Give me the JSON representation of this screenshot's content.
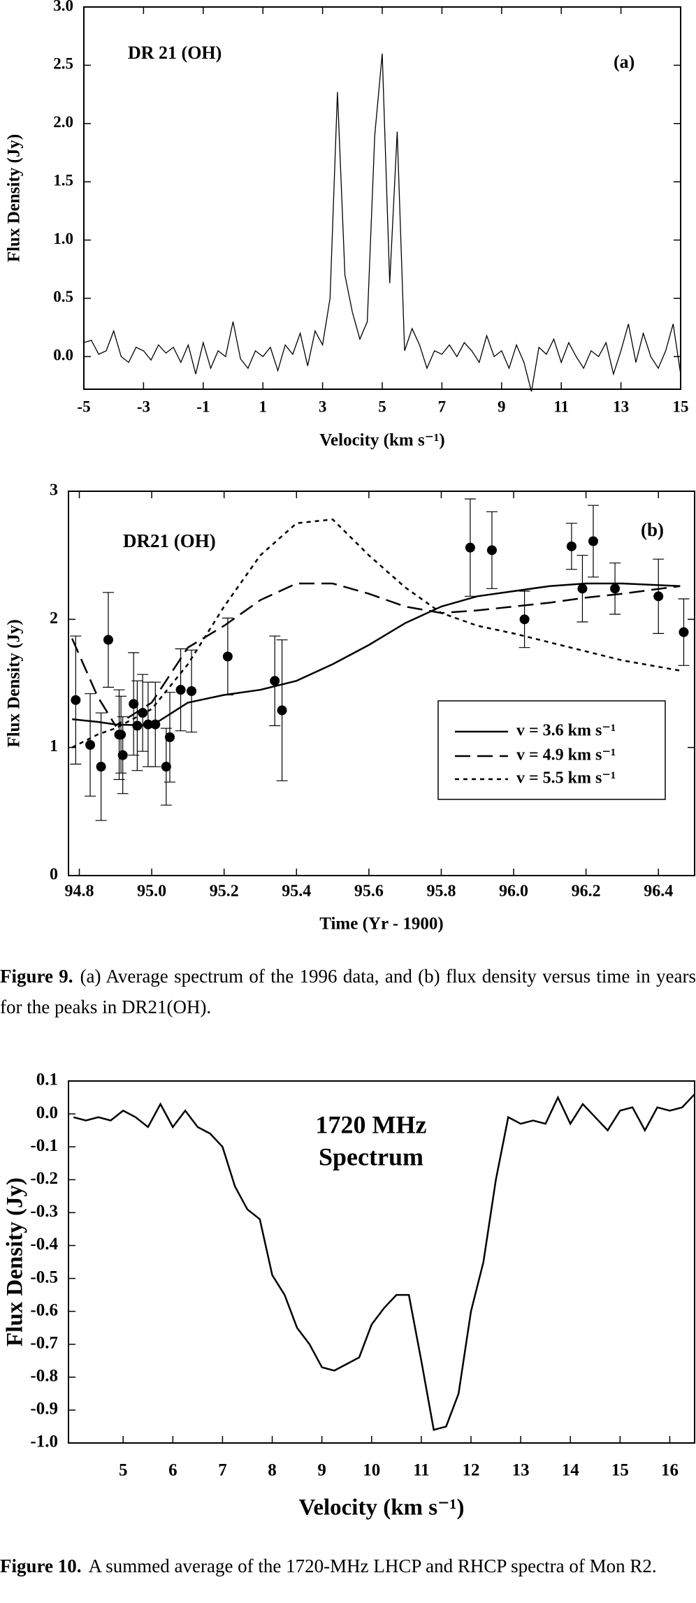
{
  "chart_data": [
    {
      "type": "line",
      "annotations": [
        "DR 21 (OH)",
        "(a)"
      ],
      "xlabel": "Velocity (km s⁻¹)",
      "ylabel": "Flux Density (Jy)",
      "color": "#000000",
      "x": [
        -5,
        -4.75,
        -4.5,
        -4.25,
        -4,
        -3.75,
        -3.5,
        -3.25,
        -3,
        -2.75,
        -2.5,
        -2.25,
        -2,
        -1.75,
        -1.5,
        -1.25,
        -1,
        -0.75,
        -0.5,
        -0.25,
        0,
        0.25,
        0.5,
        0.75,
        1,
        1.25,
        1.5,
        1.75,
        2,
        2.25,
        2.5,
        2.75,
        3,
        3.25,
        3.5,
        3.75,
        4,
        4.25,
        4.5,
        4.75,
        5,
        5.25,
        5.5,
        5.75,
        6,
        6.25,
        6.5,
        6.75,
        7,
        7.25,
        7.5,
        7.75,
        8,
        8.25,
        8.5,
        8.75,
        9,
        9.25,
        9.5,
        9.75,
        10,
        10.25,
        10.5,
        10.75,
        11,
        11.25,
        11.5,
        11.75,
        12,
        12.25,
        12.5,
        12.75,
        13,
        13.25,
        13.5,
        13.75,
        14,
        14.25,
        14.5,
        14.75,
        15
      ],
      "values": [
        0.12,
        0.14,
        0.02,
        0.05,
        0.22,
        0.0,
        -0.05,
        0.08,
        0.05,
        -0.03,
        0.1,
        0.03,
        0.08,
        -0.05,
        0.1,
        -0.15,
        0.12,
        -0.1,
        0.05,
        0.0,
        0.3,
        -0.02,
        -0.1,
        0.05,
        0.0,
        0.08,
        -0.12,
        0.1,
        0.02,
        0.2,
        -0.08,
        0.22,
        0.1,
        0.5,
        2.27,
        0.7,
        0.38,
        0.15,
        0.3,
        1.9,
        2.6,
        0.63,
        1.93,
        0.05,
        0.24,
        0.1,
        -0.1,
        0.05,
        0.02,
        0.1,
        0.0,
        0.12,
        0.05,
        -0.05,
        0.18,
        0.0,
        0.05,
        -0.1,
        0.1,
        -0.05,
        -0.3,
        0.08,
        0.02,
        0.15,
        -0.05,
        0.12,
        0.0,
        -0.1,
        0.05,
        0.0,
        0.12,
        -0.15,
        0.05,
        0.28,
        -0.05,
        0.2,
        0.0,
        -0.1,
        0.05,
        0.28,
        -0.15
      ],
      "xlim": [
        -5,
        15
      ],
      "xticks": [
        -5,
        -3,
        -1,
        1,
        3,
        5,
        7,
        9,
        11,
        13,
        15
      ],
      "ylim": [
        -0.28,
        3.0
      ],
      "yticks": [
        {
          "value": 0,
          "label": "0.0"
        },
        0.5,
        {
          "value": 1,
          "label": "1.0"
        },
        1.5,
        {
          "value": 2,
          "label": "2.0"
        },
        2.5,
        {
          "value": 3,
          "label": "3.0"
        }
      ]
    },
    {
      "type": "line",
      "annotations": [
        "DR21 (OH)",
        "(b)"
      ],
      "xlabel": "Time (Yr - 1900)",
      "ylabel": "Flux Density (Jy)",
      "legend": true,
      "x": [
        94.78,
        94.85,
        94.9,
        95.0,
        95.1,
        95.2,
        95.3,
        95.4,
        95.5,
        95.6,
        95.7,
        95.8,
        95.9,
        96.0,
        96.1,
        96.2,
        96.3,
        96.46
      ],
      "series": [
        {
          "name": "v = 3.6 km s⁻¹",
          "color": "#000000",
          "dash": "solid",
          "values": [
            1.22,
            1.2,
            1.18,
            1.17,
            1.35,
            1.41,
            1.45,
            1.52,
            1.65,
            1.8,
            1.97,
            2.1,
            2.18,
            2.22,
            2.26,
            2.28,
            2.28,
            2.26
          ]
        },
        {
          "name": "v = 4.9 km s⁻¹",
          "color": "#000000",
          "dash": "dashed",
          "values": [
            1.85,
            1.4,
            1.17,
            1.35,
            1.78,
            1.95,
            2.15,
            2.28,
            2.28,
            2.2,
            2.1,
            2.05,
            2.07,
            2.1,
            2.13,
            2.17,
            2.2,
            2.26
          ]
        },
        {
          "name": "v = 5.5 km s⁻¹",
          "color": "#000000",
          "dash": "dotted",
          "values": [
            1.0,
            1.1,
            1.15,
            1.3,
            1.65,
            2.1,
            2.5,
            2.75,
            2.78,
            2.5,
            2.25,
            2.05,
            1.95,
            1.89,
            1.82,
            1.75,
            1.68,
            1.6
          ]
        }
      ],
      "points": {
        "color": "#000000",
        "x": [
          94.79,
          94.83,
          94.86,
          94.88,
          94.91,
          94.915,
          94.92,
          94.95,
          94.96,
          94.975,
          94.99,
          95.01,
          95.04,
          95.05,
          95.08,
          95.11,
          95.21,
          95.34,
          95.36,
          95.88,
          95.94,
          96.03,
          96.16,
          96.19,
          96.22,
          96.28,
          96.4,
          96.47
        ],
        "values": [
          1.37,
          1.02,
          0.85,
          1.84,
          1.1,
          1.1,
          0.94,
          1.34,
          1.17,
          1.27,
          1.18,
          1.18,
          0.85,
          1.08,
          1.45,
          1.44,
          1.71,
          1.52,
          1.29,
          2.56,
          2.54,
          2.0,
          2.57,
          2.24,
          2.61,
          2.24,
          2.18,
          1.9
        ],
        "errors": [
          0.5,
          0.4,
          0.42,
          0.37,
          0.35,
          0.3,
          0.3,
          0.4,
          0.35,
          0.3,
          0.33,
          0.33,
          0.3,
          0.35,
          0.32,
          0.32,
          0.3,
          0.35,
          0.55,
          0.38,
          0.3,
          0.22,
          0.18,
          0.26,
          0.28,
          0.2,
          0.29,
          0.26
        ]
      },
      "xlim": [
        94.77,
        96.5
      ],
      "xticks": [
        94.8,
        {
          "value": 95,
          "label": "95.0"
        },
        95.2,
        95.4,
        95.6,
        95.8,
        {
          "value": 96,
          "label": "96.0"
        },
        96.2,
        96.4
      ],
      "ylim": [
        0,
        3
      ],
      "yticks": [
        0,
        1,
        2,
        3
      ]
    },
    {
      "type": "line",
      "annotations": [
        "1720 MHz",
        "Spectrum"
      ],
      "xlabel": "Velocity (km s⁻¹)",
      "ylabel": "Flux Density (Jy)",
      "color": "#000000",
      "x": [
        4.0,
        4.25,
        4.5,
        4.75,
        5,
        5.25,
        5.5,
        5.75,
        6,
        6.25,
        6.5,
        6.75,
        7,
        7.25,
        7.5,
        7.75,
        8,
        8.25,
        8.5,
        8.75,
        9,
        9.25,
        9.5,
        9.75,
        10,
        10.25,
        10.5,
        10.75,
        11,
        11.25,
        11.5,
        11.75,
        12,
        12.25,
        12.5,
        12.75,
        13,
        13.25,
        13.5,
        13.75,
        14,
        14.25,
        14.5,
        14.75,
        15,
        15.25,
        15.5,
        15.75,
        16,
        16.25,
        16.5
      ],
      "values": [
        -0.01,
        -0.02,
        -0.01,
        -0.02,
        0.01,
        -0.01,
        -0.04,
        0.03,
        -0.04,
        0.01,
        -0.04,
        -0.06,
        -0.1,
        -0.22,
        -0.29,
        -0.32,
        -0.49,
        -0.55,
        -0.65,
        -0.7,
        -0.77,
        -0.78,
        -0.76,
        -0.74,
        -0.64,
        -0.59,
        -0.55,
        -0.55,
        -0.75,
        -0.96,
        -0.95,
        -0.85,
        -0.6,
        -0.45,
        -0.2,
        -0.01,
        -0.03,
        -0.02,
        -0.03,
        0.05,
        -0.03,
        0.03,
        -0.01,
        -0.05,
        0.01,
        0.02,
        -0.05,
        0.02,
        0.01,
        0.02,
        0.06
      ],
      "xlim": [
        3.9,
        16.5
      ],
      "xticks": [
        5,
        6,
        7,
        8,
        9,
        10,
        11,
        12,
        13,
        14,
        15,
        16
      ],
      "ylim": [
        -1.0,
        0.1
      ],
      "yticks": [
        0.1,
        {
          "value": 0,
          "label": "0.0"
        },
        -0.1,
        -0.2,
        -0.3,
        -0.4,
        -0.5,
        -0.6,
        -0.7,
        -0.8,
        -0.9,
        {
          "value": -1,
          "label": "-1.0"
        }
      ]
    }
  ],
  "captions": [
    {
      "label": "Figure 9.",
      "text": "(a) Average spectrum of the 1996 data, and (b) flux density versus time in years for the peaks in DR21(OH)."
    },
    {
      "label": "Figure 10.",
      "text": "A summed average of the 1720-MHz LHCP and RHCP spectra of Mon R2."
    }
  ]
}
